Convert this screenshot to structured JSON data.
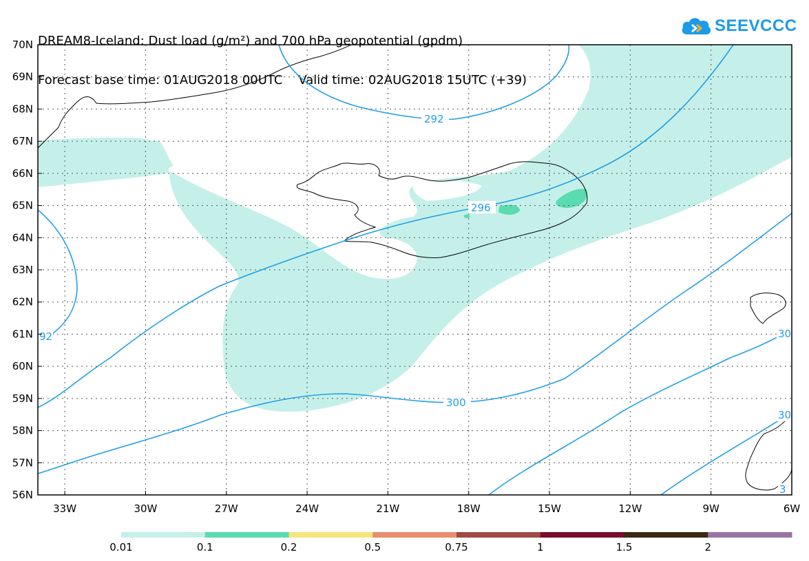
{
  "header": {
    "line1": "DREAM8-Iceland: Dust load (g/m²) and 700 hPa geopotential (gpdm)",
    "line2": "Forecast base time: 01AUG2018 00UTC    Valid time: 02AUG2018 15UTC (+39)"
  },
  "logo": {
    "text": "SEEVCCC",
    "icon": "cloud-icon",
    "color": "#1b9be8"
  },
  "map": {
    "lat_labels": [
      "70N",
      "69N",
      "68N",
      "67N",
      "66N",
      "65N",
      "64N",
      "63N",
      "62N",
      "61N",
      "60N",
      "59N",
      "58N",
      "57N",
      "56N"
    ],
    "lon_labels": [
      "33W",
      "30W",
      "27W",
      "24W",
      "21W",
      "18W",
      "15W",
      "12W",
      "9W",
      "6W"
    ],
    "lon_range": [
      -34,
      -6
    ],
    "lat_range": [
      56,
      70
    ],
    "contour_labels": [
      "292",
      "296",
      "300",
      "92",
      "30",
      "30",
      "3"
    ],
    "contour_color": "#1f9fe6",
    "coastline_color": "#000000"
  },
  "legend": {
    "labels": [
      "0.01",
      "0.1",
      "0.2",
      "0.5",
      "0.75",
      "1",
      "1.5",
      "2"
    ],
    "colors": [
      "#c5f0ea",
      "#5bdbb0",
      "#f6e67c",
      "#e88d6e",
      "#a14a44",
      "#7b0d2c",
      "#3a2a14",
      "#9a73a6"
    ]
  }
}
